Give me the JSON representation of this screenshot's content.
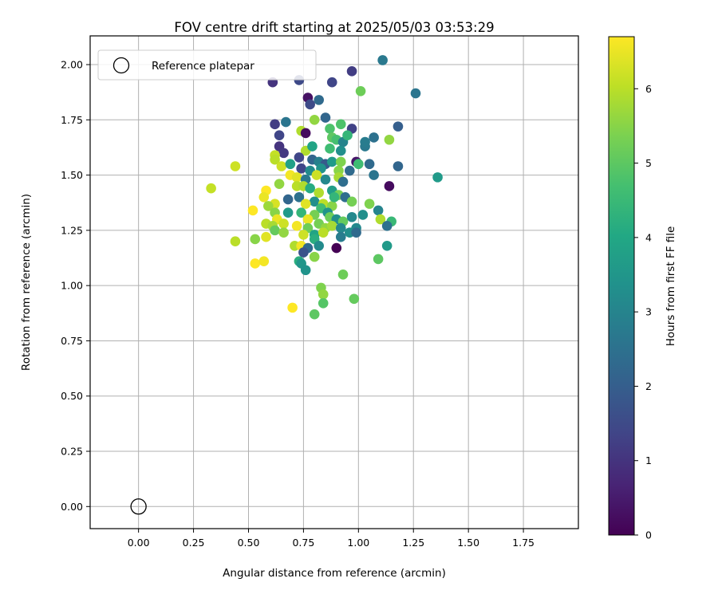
{
  "chart_data": {
    "type": "scatter",
    "title": "FOV centre drift starting at 2025/05/03 03:53:29",
    "xlabel": "Angular distance from reference (arcmin)",
    "ylabel": "Rotation from reference (arcmin)",
    "xlim": [
      -0.22,
      2.0
    ],
    "ylim": [
      -0.1,
      2.13
    ],
    "xticks": [
      "0.00",
      "0.25",
      "0.50",
      "0.75",
      "1.00",
      "1.25",
      "1.50",
      "1.75"
    ],
    "yticks": [
      "0.00",
      "0.25",
      "0.50",
      "0.75",
      "1.00",
      "1.25",
      "1.50",
      "1.75",
      "2.00"
    ],
    "grid": true,
    "legend": {
      "placement": "top-left",
      "label": "Reference platepar"
    },
    "reference_point": {
      "x": 0.0,
      "y": 0.0
    },
    "colorbar": {
      "label": "Hours from first FF file",
      "range": [
        0,
        6.7
      ],
      "ticks": [
        "0",
        "1",
        "2",
        "3",
        "4",
        "5",
        "6"
      ],
      "colormap": "viridis"
    },
    "points": [
      {
        "x": 0.61,
        "y": 1.92,
        "h": 1.0
      },
      {
        "x": 0.73,
        "y": 1.93,
        "h": 1.5
      },
      {
        "x": 0.88,
        "y": 1.92,
        "h": 1.4
      },
      {
        "x": 0.97,
        "y": 1.97,
        "h": 1.2
      },
      {
        "x": 1.11,
        "y": 2.02,
        "h": 2.7
      },
      {
        "x": 1.01,
        "y": 1.88,
        "h": 5.2
      },
      {
        "x": 1.26,
        "y": 1.87,
        "h": 2.6
      },
      {
        "x": 0.77,
        "y": 1.85,
        "h": 0.3
      },
      {
        "x": 0.78,
        "y": 1.82,
        "h": 1.5
      },
      {
        "x": 0.82,
        "y": 1.84,
        "h": 2.3
      },
      {
        "x": 0.62,
        "y": 1.73,
        "h": 1.2
      },
      {
        "x": 0.67,
        "y": 1.74,
        "h": 2.6
      },
      {
        "x": 0.8,
        "y": 1.75,
        "h": 5.6
      },
      {
        "x": 0.85,
        "y": 1.76,
        "h": 2.2
      },
      {
        "x": 0.87,
        "y": 1.71,
        "h": 4.8
      },
      {
        "x": 0.92,
        "y": 1.73,
        "h": 4.8
      },
      {
        "x": 0.97,
        "y": 1.71,
        "h": 1.3
      },
      {
        "x": 1.18,
        "y": 1.72,
        "h": 2.0
      },
      {
        "x": 0.64,
        "y": 1.68,
        "h": 1.4
      },
      {
        "x": 0.74,
        "y": 1.7,
        "h": 5.9
      },
      {
        "x": 0.76,
        "y": 1.69,
        "h": 0.2
      },
      {
        "x": 0.88,
        "y": 1.67,
        "h": 5.0
      },
      {
        "x": 0.9,
        "y": 1.66,
        "h": 4.7
      },
      {
        "x": 0.93,
        "y": 1.65,
        "h": 3.0
      },
      {
        "x": 1.07,
        "y": 1.67,
        "h": 2.5
      },
      {
        "x": 1.14,
        "y": 1.66,
        "h": 5.6
      },
      {
        "x": 0.64,
        "y": 1.63,
        "h": 1.0
      },
      {
        "x": 0.66,
        "y": 1.6,
        "h": 1.1
      },
      {
        "x": 0.76,
        "y": 1.61,
        "h": 5.9
      },
      {
        "x": 0.79,
        "y": 1.63,
        "h": 3.9
      },
      {
        "x": 0.87,
        "y": 1.62,
        "h": 4.6
      },
      {
        "x": 0.92,
        "y": 1.61,
        "h": 3.3
      },
      {
        "x": 1.03,
        "y": 1.63,
        "h": 2.7
      },
      {
        "x": 1.03,
        "y": 1.65,
        "h": 2.8
      },
      {
        "x": 0.62,
        "y": 1.59,
        "h": 6.1
      },
      {
        "x": 0.62,
        "y": 1.57,
        "h": 6.0
      },
      {
        "x": 0.73,
        "y": 1.58,
        "h": 1.4
      },
      {
        "x": 0.79,
        "y": 1.57,
        "h": 2.2
      },
      {
        "x": 0.82,
        "y": 1.56,
        "h": 2.9
      },
      {
        "x": 0.85,
        "y": 1.55,
        "h": 1.9
      },
      {
        "x": 0.88,
        "y": 1.56,
        "h": 3.6
      },
      {
        "x": 0.92,
        "y": 1.56,
        "h": 5.4
      },
      {
        "x": 0.99,
        "y": 1.56,
        "h": 0.4
      },
      {
        "x": 1.0,
        "y": 1.55,
        "h": 4.6
      },
      {
        "x": 1.05,
        "y": 1.55,
        "h": 2.3
      },
      {
        "x": 0.44,
        "y": 1.54,
        "h": 6.2
      },
      {
        "x": 0.65,
        "y": 1.54,
        "h": 6.2
      },
      {
        "x": 0.74,
        "y": 1.53,
        "h": 1.4
      },
      {
        "x": 0.78,
        "y": 1.52,
        "h": 3.2
      },
      {
        "x": 0.83,
        "y": 1.53,
        "h": 3.4
      },
      {
        "x": 0.91,
        "y": 1.52,
        "h": 5.5
      },
      {
        "x": 0.96,
        "y": 1.52,
        "h": 2.3
      },
      {
        "x": 1.07,
        "y": 1.5,
        "h": 2.6
      },
      {
        "x": 1.18,
        "y": 1.54,
        "h": 2.2
      },
      {
        "x": 1.36,
        "y": 1.49,
        "h": 3.6
      },
      {
        "x": 0.69,
        "y": 1.5,
        "h": 6.6
      },
      {
        "x": 0.72,
        "y": 1.49,
        "h": 6.4
      },
      {
        "x": 0.76,
        "y": 1.48,
        "h": 2.7
      },
      {
        "x": 0.81,
        "y": 1.5,
        "h": 6.2
      },
      {
        "x": 0.85,
        "y": 1.48,
        "h": 3.1
      },
      {
        "x": 0.91,
        "y": 1.49,
        "h": 5.8
      },
      {
        "x": 0.93,
        "y": 1.47,
        "h": 2.4
      },
      {
        "x": 1.14,
        "y": 1.45,
        "h": 0.2
      },
      {
        "x": 0.33,
        "y": 1.44,
        "h": 6.1
      },
      {
        "x": 0.58,
        "y": 1.43,
        "h": 6.7
      },
      {
        "x": 0.64,
        "y": 1.46,
        "h": 5.6
      },
      {
        "x": 0.72,
        "y": 1.45,
        "h": 6.0
      },
      {
        "x": 0.75,
        "y": 1.45,
        "h": 5.9
      },
      {
        "x": 0.78,
        "y": 1.44,
        "h": 4.1
      },
      {
        "x": 0.82,
        "y": 1.42,
        "h": 5.9
      },
      {
        "x": 0.88,
        "y": 1.43,
        "h": 3.7
      },
      {
        "x": 0.91,
        "y": 1.41,
        "h": 5.3
      },
      {
        "x": 0.94,
        "y": 1.4,
        "h": 2.4
      },
      {
        "x": 0.57,
        "y": 1.4,
        "h": 6.5
      },
      {
        "x": 0.68,
        "y": 1.39,
        "h": 2.2
      },
      {
        "x": 0.73,
        "y": 1.4,
        "h": 2.5
      },
      {
        "x": 0.8,
        "y": 1.38,
        "h": 3.3
      },
      {
        "x": 0.84,
        "y": 1.37,
        "h": 6.0
      },
      {
        "x": 0.88,
        "y": 1.36,
        "h": 5.5
      },
      {
        "x": 0.97,
        "y": 1.38,
        "h": 5.3
      },
      {
        "x": 0.62,
        "y": 1.37,
        "h": 6.3
      },
      {
        "x": 0.59,
        "y": 1.36,
        "h": 5.7
      },
      {
        "x": 0.76,
        "y": 1.37,
        "h": 6.4
      },
      {
        "x": 0.83,
        "y": 1.35,
        "h": 4.6
      },
      {
        "x": 0.86,
        "y": 1.33,
        "h": 3.4
      },
      {
        "x": 0.52,
        "y": 1.34,
        "h": 6.7
      },
      {
        "x": 0.62,
        "y": 1.33,
        "h": 5.5
      },
      {
        "x": 0.68,
        "y": 1.33,
        "h": 3.6
      },
      {
        "x": 0.74,
        "y": 1.33,
        "h": 4.4
      },
      {
        "x": 0.8,
        "y": 1.32,
        "h": 5.3
      },
      {
        "x": 0.87,
        "y": 1.31,
        "h": 5.2
      },
      {
        "x": 0.9,
        "y": 1.3,
        "h": 3.3
      },
      {
        "x": 0.93,
        "y": 1.29,
        "h": 5.1
      },
      {
        "x": 0.97,
        "y": 1.31,
        "h": 3.1
      },
      {
        "x": 1.02,
        "y": 1.32,
        "h": 3.3
      },
      {
        "x": 1.09,
        "y": 1.34,
        "h": 3.0
      },
      {
        "x": 1.1,
        "y": 1.3,
        "h": 5.9
      },
      {
        "x": 1.15,
        "y": 1.29,
        "h": 4.5
      },
      {
        "x": 0.63,
        "y": 1.3,
        "h": 6.5
      },
      {
        "x": 0.77,
        "y": 1.3,
        "h": 6.5
      },
      {
        "x": 0.58,
        "y": 1.28,
        "h": 6.0
      },
      {
        "x": 0.61,
        "y": 1.27,
        "h": 5.8
      },
      {
        "x": 0.66,
        "y": 1.28,
        "h": 6.2
      },
      {
        "x": 0.72,
        "y": 1.27,
        "h": 6.6
      },
      {
        "x": 0.77,
        "y": 1.26,
        "h": 5.2
      },
      {
        "x": 0.82,
        "y": 1.28,
        "h": 5.3
      },
      {
        "x": 0.85,
        "y": 1.26,
        "h": 5.6
      },
      {
        "x": 0.88,
        "y": 1.27,
        "h": 5.8
      },
      {
        "x": 0.92,
        "y": 1.26,
        "h": 3.1
      },
      {
        "x": 0.99,
        "y": 1.26,
        "h": 3.1
      },
      {
        "x": 1.13,
        "y": 1.27,
        "h": 2.5
      },
      {
        "x": 0.62,
        "y": 1.25,
        "h": 5.1
      },
      {
        "x": 0.66,
        "y": 1.24,
        "h": 5.6
      },
      {
        "x": 0.75,
        "y": 1.23,
        "h": 6.2
      },
      {
        "x": 0.8,
        "y": 1.23,
        "h": 3.9
      },
      {
        "x": 0.84,
        "y": 1.24,
        "h": 6.0
      },
      {
        "x": 0.92,
        "y": 1.22,
        "h": 2.8
      },
      {
        "x": 0.96,
        "y": 1.24,
        "h": 3.3
      },
      {
        "x": 0.99,
        "y": 1.24,
        "h": 2.3
      },
      {
        "x": 0.44,
        "y": 1.2,
        "h": 6.0
      },
      {
        "x": 0.53,
        "y": 1.21,
        "h": 5.5
      },
      {
        "x": 0.58,
        "y": 1.22,
        "h": 6.4
      },
      {
        "x": 0.8,
        "y": 1.21,
        "h": 4.2
      },
      {
        "x": 0.82,
        "y": 1.18,
        "h": 3.2
      },
      {
        "x": 0.71,
        "y": 1.18,
        "h": 5.9
      },
      {
        "x": 0.74,
        "y": 1.18,
        "h": 6.6
      },
      {
        "x": 0.77,
        "y": 1.17,
        "h": 2.3
      },
      {
        "x": 1.13,
        "y": 1.18,
        "h": 3.6
      },
      {
        "x": 0.75,
        "y": 1.15,
        "h": 1.7
      },
      {
        "x": 0.8,
        "y": 1.13,
        "h": 5.5
      },
      {
        "x": 1.09,
        "y": 1.12,
        "h": 5.0
      },
      {
        "x": 0.53,
        "y": 1.1,
        "h": 6.7
      },
      {
        "x": 0.57,
        "y": 1.11,
        "h": 6.6
      },
      {
        "x": 0.73,
        "y": 1.11,
        "h": 4.2
      },
      {
        "x": 0.74,
        "y": 1.1,
        "h": 3.5
      },
      {
        "x": 0.76,
        "y": 1.07,
        "h": 3.4
      },
      {
        "x": 0.93,
        "y": 1.05,
        "h": 5.2
      },
      {
        "x": 0.83,
        "y": 0.99,
        "h": 5.4
      },
      {
        "x": 0.84,
        "y": 0.96,
        "h": 5.6
      },
      {
        "x": 0.98,
        "y": 0.94,
        "h": 5.1
      },
      {
        "x": 0.84,
        "y": 0.92,
        "h": 4.9
      },
      {
        "x": 0.7,
        "y": 0.9,
        "h": 6.7
      },
      {
        "x": 0.8,
        "y": 0.87,
        "h": 5.0
      },
      {
        "x": 0.9,
        "y": 1.17,
        "h": 0.0
      },
      {
        "x": 1.05,
        "y": 1.37,
        "h": 5.4
      },
      {
        "x": 0.95,
        "y": 1.68,
        "h": 4.4
      },
      {
        "x": 0.89,
        "y": 1.4,
        "h": 4.4
      },
      {
        "x": 0.69,
        "y": 1.55,
        "h": 3.8
      }
    ]
  }
}
